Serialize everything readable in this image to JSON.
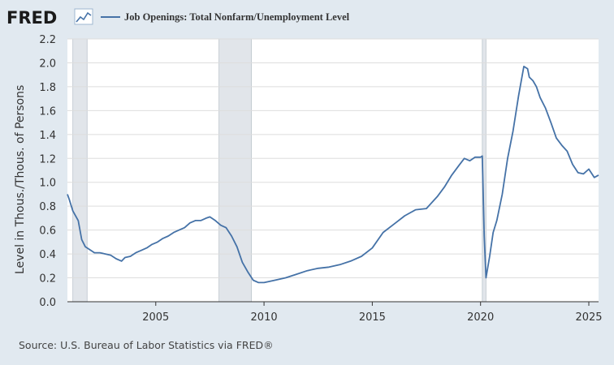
{
  "brand": {
    "logo_text": "FRED",
    "logo_icon": "line-chart-icon"
  },
  "legend": {
    "label": "Job Openings: Total Nonfarm/Unemployment Level",
    "color": "#4572a7"
  },
  "source_text": "Source: U.S. Bureau of Labor Statistics via FRED®",
  "colors": {
    "background": "#e1e9f0",
    "plot": "#ffffff",
    "line": "#4572a7",
    "recession": "#e1e5ea",
    "grid": "#dddddd"
  },
  "chart_data": {
    "type": "line",
    "title": "",
    "ylabel": "Level in Thous./Thous. of Persons",
    "xlabel": "",
    "xlim": [
      2000.92,
      2025.45
    ],
    "ylim": [
      0,
      2.2
    ],
    "yticks": [
      "0.0",
      "0.2",
      "0.4",
      "0.6",
      "0.8",
      "1.0",
      "1.2",
      "1.4",
      "1.6",
      "1.8",
      "2.0",
      "2.2"
    ],
    "xticks": [
      "2005",
      "2010",
      "2015",
      "2020",
      "2025"
    ],
    "grid": true,
    "legend_position": "top-left",
    "recessions": [
      [
        2001.17,
        2001.83
      ],
      [
        2007.92,
        2009.42
      ],
      [
        2020.08,
        2020.25
      ]
    ],
    "series": [
      {
        "name": "Job Openings: Total Nonfarm/Unemployment Level",
        "x": [
          2000.92,
          2001.0,
          2001.17,
          2001.42,
          2001.58,
          2001.75,
          2001.92,
          2002.17,
          2002.42,
          2002.67,
          2002.92,
          2003.17,
          2003.42,
          2003.58,
          2003.83,
          2004.08,
          2004.33,
          2004.58,
          2004.83,
          2005.08,
          2005.33,
          2005.58,
          2005.83,
          2006.08,
          2006.33,
          2006.58,
          2006.83,
          2007.08,
          2007.33,
          2007.5,
          2007.75,
          2008.0,
          2008.25,
          2008.5,
          2008.75,
          2009.0,
          2009.25,
          2009.5,
          2009.75,
          2010.0,
          2010.5,
          2011.0,
          2011.5,
          2012.0,
          2012.5,
          2013.0,
          2013.5,
          2014.0,
          2014.5,
          2015.0,
          2015.5,
          2016.0,
          2016.5,
          2017.0,
          2017.5,
          2018.0,
          2018.33,
          2018.67,
          2019.0,
          2019.25,
          2019.5,
          2019.75,
          2020.0,
          2020.08,
          2020.17,
          2020.25,
          2020.42,
          2020.58,
          2020.75,
          2021.0,
          2021.25,
          2021.5,
          2021.75,
          2022.0,
          2022.17,
          2022.25,
          2022.42,
          2022.58,
          2022.75,
          2023.0,
          2023.25,
          2023.5,
          2023.75,
          2024.0,
          2024.25,
          2024.5,
          2024.75,
          2025.0,
          2025.25,
          2025.45
        ],
        "values": [
          0.9,
          0.86,
          0.76,
          0.68,
          0.52,
          0.46,
          0.44,
          0.41,
          0.41,
          0.4,
          0.39,
          0.36,
          0.34,
          0.37,
          0.38,
          0.41,
          0.43,
          0.45,
          0.48,
          0.5,
          0.53,
          0.55,
          0.58,
          0.6,
          0.62,
          0.66,
          0.68,
          0.68,
          0.7,
          0.71,
          0.68,
          0.64,
          0.62,
          0.55,
          0.46,
          0.33,
          0.25,
          0.18,
          0.16,
          0.16,
          0.18,
          0.2,
          0.23,
          0.26,
          0.28,
          0.29,
          0.31,
          0.34,
          0.38,
          0.45,
          0.58,
          0.65,
          0.72,
          0.77,
          0.78,
          0.88,
          0.96,
          1.06,
          1.14,
          1.2,
          1.18,
          1.21,
          1.21,
          1.22,
          0.55,
          0.2,
          0.38,
          0.58,
          0.68,
          0.9,
          1.2,
          1.43,
          1.72,
          1.97,
          1.95,
          1.88,
          1.85,
          1.8,
          1.71,
          1.62,
          1.5,
          1.37,
          1.31,
          1.26,
          1.15,
          1.08,
          1.07,
          1.11,
          1.04,
          1.06
        ]
      }
    ]
  }
}
